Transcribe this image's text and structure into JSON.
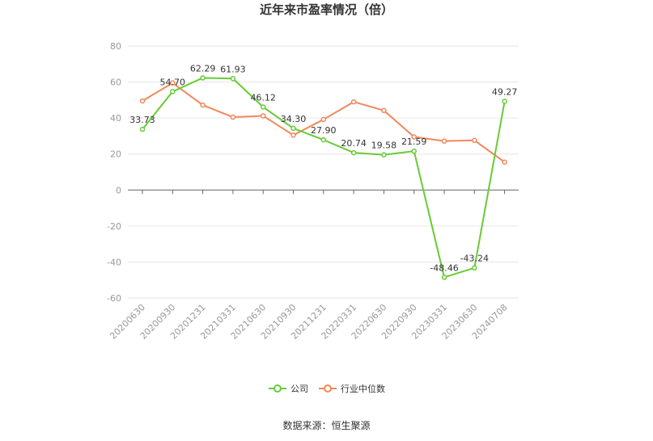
{
  "colors": {
    "company": "#66cc33",
    "industry": "#f2875a",
    "grid": "#e6e6e6",
    "axis": "#999999",
    "text": "#333333"
  },
  "chart_data": {
    "type": "line",
    "title": "近年来市盈率情况（倍）",
    "source": "数据来源：恒生聚源",
    "categories": [
      "20200630",
      "20200930",
      "20201231",
      "20210331",
      "20210630",
      "20210930",
      "20211231",
      "20220331",
      "20220630",
      "20220930",
      "20230331",
      "20230630",
      "20240708"
    ],
    "ylim": [
      -60,
      80
    ],
    "yticks": [
      80,
      60,
      40,
      20,
      0,
      -20,
      -40,
      -60
    ],
    "grid": true,
    "legend_position": "bottom",
    "series": [
      {
        "name": "公司",
        "values": [
          33.73,
          54.7,
          62.29,
          61.93,
          46.12,
          34.3,
          27.9,
          20.74,
          19.58,
          21.59,
          -48.46,
          -43.24,
          49.27
        ],
        "labels": [
          "33.73",
          "54.70",
          "62.29",
          "61.93",
          "46.12",
          "34.30",
          "27.90",
          "20.74",
          "19.58",
          "21.59",
          "-48.46",
          "-43.24",
          "49.27"
        ]
      },
      {
        "name": "行业中位数",
        "values": [
          49.5,
          59.5,
          47.2,
          40.5,
          41.2,
          30.5,
          39.2,
          49.0,
          44.2,
          29.5,
          27.2,
          27.6,
          15.5
        ]
      }
    ]
  }
}
